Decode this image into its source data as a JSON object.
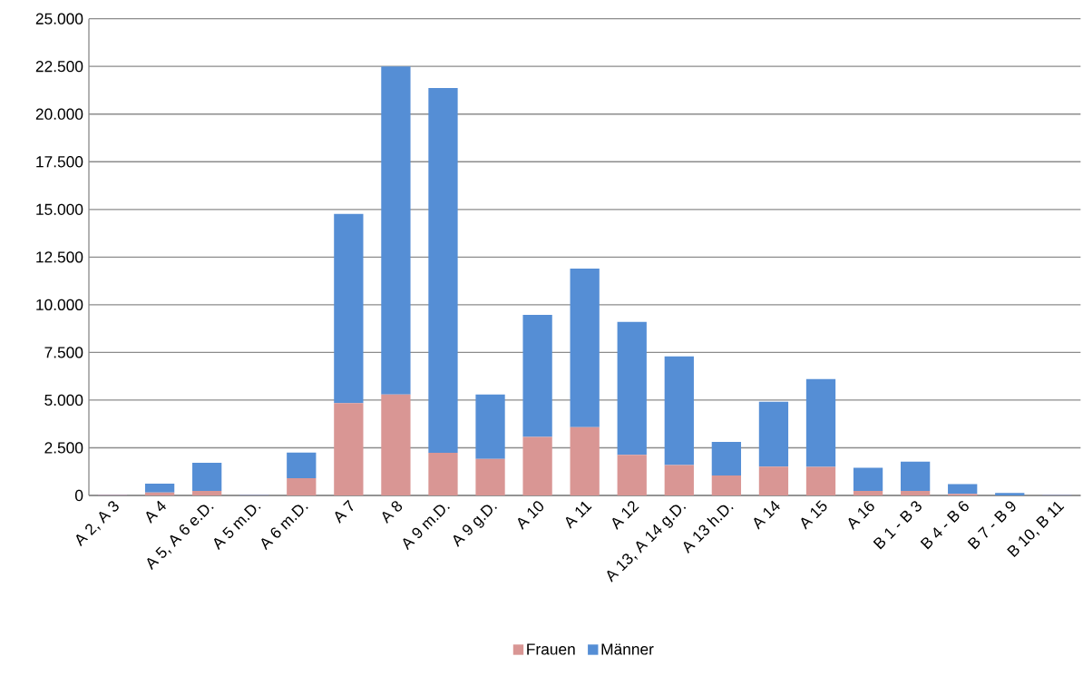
{
  "chart_data": {
    "type": "bar",
    "stacked": true,
    "categories": [
      "A 2, A 3",
      "A 4",
      "A 5, A 6 e.D.",
      "A 5 m.D.",
      "A 6 m.D.",
      "A 7",
      "A 8",
      "A 9 m.D.",
      "A 9 g.D.",
      "A 10",
      "A 11",
      "A 12",
      "A 13, A 14 g.D.",
      "A 13 h.D.",
      "A 14",
      "A 15",
      "A 16",
      "B 1 - B 3",
      "B 4 - B 6",
      "B 7 - B 9",
      "B 10, B 11"
    ],
    "series": [
      {
        "name": "Frauen",
        "color": "#d99694",
        "values": [
          20,
          150,
          240,
          10,
          900,
          4840,
          5290,
          2240,
          1920,
          3070,
          3580,
          2130,
          1600,
          1050,
          1510,
          1500,
          240,
          240,
          80,
          null,
          10
        ]
      },
      {
        "name": "Männer",
        "color": "#558ed5",
        "values": [
          30,
          470,
          1470,
          20,
          1350,
          9920,
          17210,
          19130,
          3380,
          6400,
          8320,
          6970,
          5690,
          1760,
          3400,
          4600,
          1210,
          1530,
          520,
          130,
          20
        ]
      }
    ],
    "ylim": [
      0,
      25000
    ],
    "yticks": [
      {
        "value": 0,
        "label": "0"
      },
      {
        "value": 2500,
        "label": "2.500"
      },
      {
        "value": 5000,
        "label": "5.000"
      },
      {
        "value": 7500,
        "label": "7.500"
      },
      {
        "value": 10000,
        "label": "10.000"
      },
      {
        "value": 12500,
        "label": "12.500"
      },
      {
        "value": 15000,
        "label": "15.000"
      },
      {
        "value": 17500,
        "label": "17.500"
      },
      {
        "value": 20000,
        "label": "20.000"
      },
      {
        "value": 22500,
        "label": "22.500"
      },
      {
        "value": 25000,
        "label": "25.000"
      }
    ],
    "grid": "y",
    "legend": "bottom"
  }
}
